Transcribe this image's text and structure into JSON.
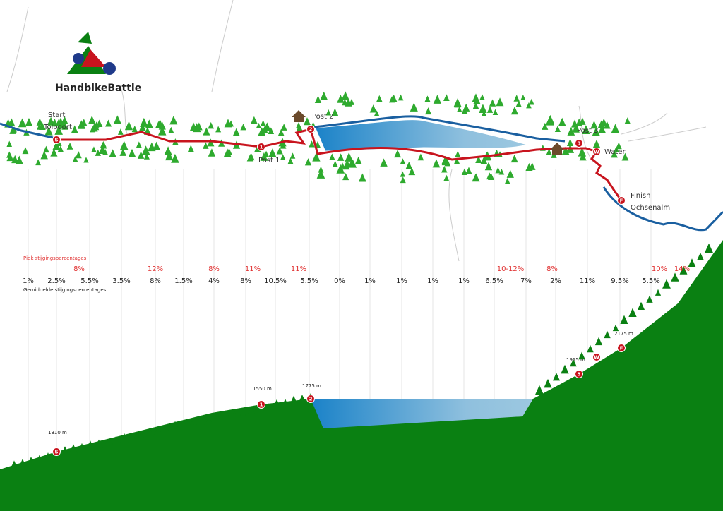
{
  "logo": {
    "title": "HandbikeBattle"
  },
  "route": {
    "start": {
      "label": "Start",
      "place": "Tolpoort"
    },
    "post1": "Post 1",
    "post2": "Post 2",
    "post3": "Post 3",
    "water": "Water",
    "finish": {
      "label": "Finish",
      "place": "Ochsenalm"
    },
    "markers": [
      "S",
      "1",
      "2",
      "3",
      "W",
      "F"
    ]
  },
  "gradients": {
    "peak_title": "Piek stijgingspercentages",
    "average_title": "Gemiddelde stijgingspercentages",
    "peak": [
      "8%",
      "12%",
      "8%",
      "11%",
      "11%",
      "10-12%",
      "8%",
      "10%",
      "14%"
    ],
    "average": [
      "1%",
      "2.5%",
      "5.5%",
      "3.5%",
      "8%",
      "1.5%",
      "4%",
      "8%",
      "10.5%",
      "5.5%",
      "0%",
      "1%",
      "1%",
      "1%",
      "1%",
      "6.5%",
      "7%",
      "2%",
      "11%",
      "9.5%",
      "5.5%"
    ]
  },
  "profile": {
    "elevations": [
      "1310 m",
      "1550 m",
      "1775 m",
      "1915 m",
      "2175 m"
    ]
  }
}
